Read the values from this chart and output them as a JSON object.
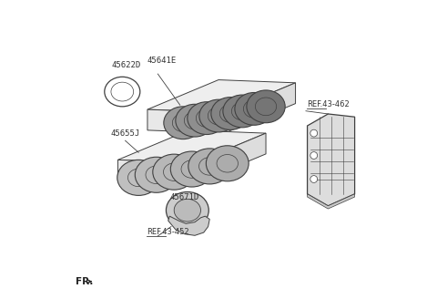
{
  "bg_color": "#ffffff",
  "line_color": "#404040",
  "label_color": "#333333",
  "labels": {
    "part1": "45622D",
    "part2": "45641E",
    "part3": "45655J",
    "part4": "45671D",
    "ref1": "REF.43-462",
    "ref2": "REF.43-452",
    "fr_label": "FR."
  }
}
